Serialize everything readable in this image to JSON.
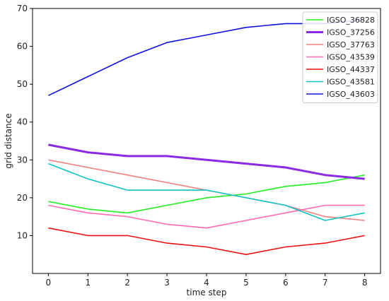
{
  "chart_data": {
    "type": "line",
    "title": "",
    "xlabel": "time step",
    "ylabel": "grid distance",
    "x": [
      0,
      1,
      2,
      3,
      4,
      5,
      6,
      7,
      8
    ],
    "xlim": [
      -0.4,
      8.4
    ],
    "ylim": [
      0,
      70
    ],
    "xticks": [
      0,
      1,
      2,
      3,
      4,
      5,
      6,
      7,
      8
    ],
    "yticks": [
      10,
      20,
      30,
      40,
      50,
      60,
      70
    ],
    "grid": false,
    "legend_position": "top-right",
    "series": [
      {
        "name": "IGSO_36828",
        "color": "#22ee22",
        "bold": false,
        "values": [
          19,
          17,
          16,
          18,
          20,
          21,
          23,
          24,
          26
        ]
      },
      {
        "name": "IGSO_37256",
        "color": "#8a2be2",
        "bold": true,
        "values": [
          34,
          32,
          31,
          31,
          30,
          29,
          28,
          26,
          25
        ]
      },
      {
        "name": "IGSO_37763",
        "color": "#f08080",
        "bold": false,
        "values": [
          30,
          28,
          26,
          24,
          22,
          20,
          18,
          15,
          14
        ]
      },
      {
        "name": "IGSO_43539",
        "color": "#ff69b4",
        "bold": false,
        "values": [
          18,
          16,
          15,
          13,
          12,
          14,
          16,
          18,
          18
        ]
      },
      {
        "name": "IGSO_44337",
        "color": "#ee1111",
        "bold": false,
        "values": [
          12,
          10,
          10,
          8,
          7,
          5,
          7,
          8,
          10
        ]
      },
      {
        "name": "IGSO_43581",
        "color": "#11c4c4",
        "bold": false,
        "values": [
          29,
          25,
          22,
          22,
          22,
          20,
          18,
          14,
          16
        ]
      },
      {
        "name": "IGSO_43603",
        "color": "#1111dd",
        "bold": false,
        "values": [
          47,
          52,
          57,
          61,
          63,
          65,
          66,
          66,
          67
        ]
      }
    ]
  }
}
